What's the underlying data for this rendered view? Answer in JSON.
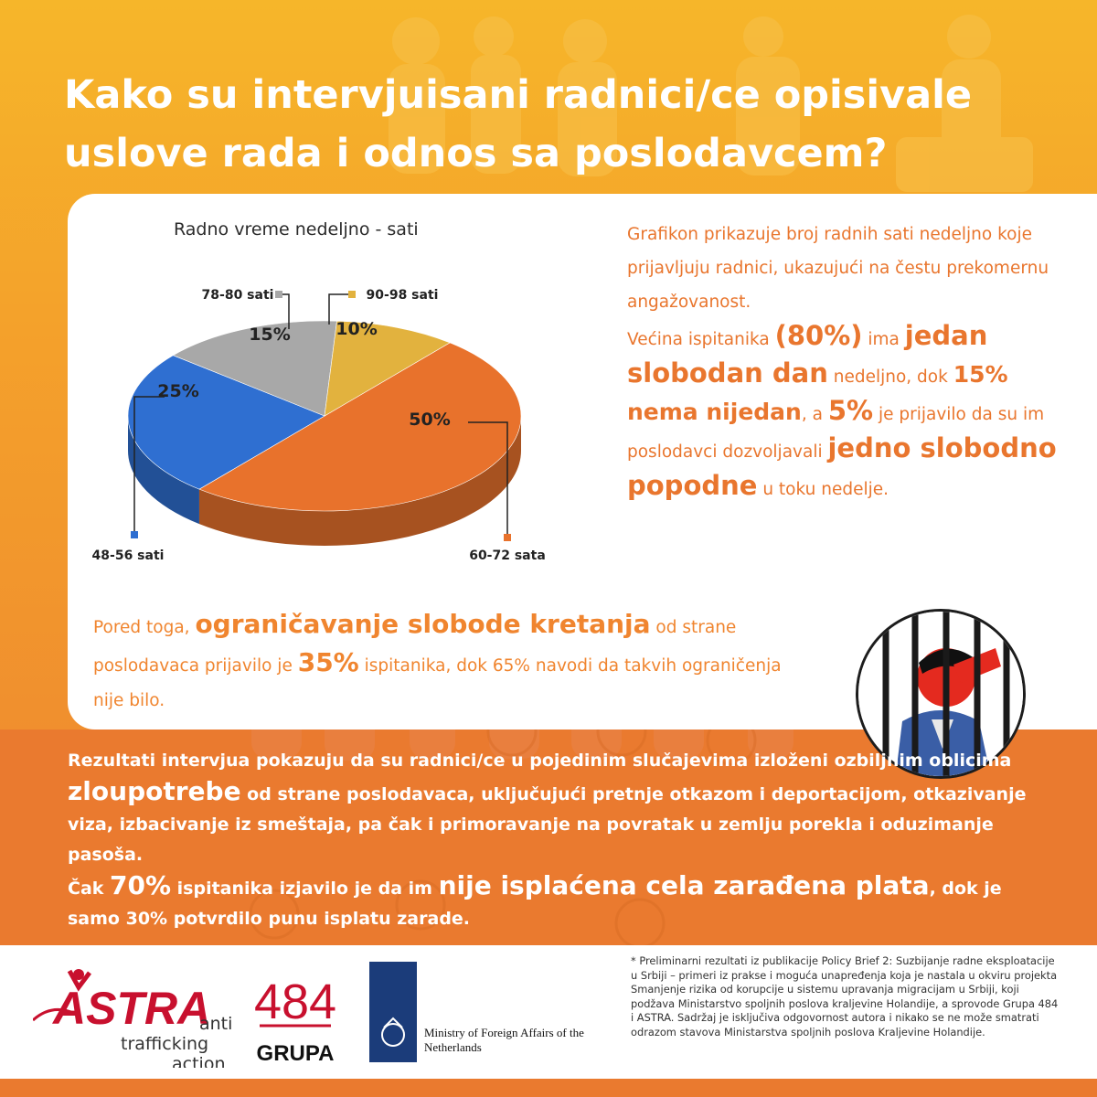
{
  "title": {
    "line1": "Kako su intervjuisani radnici/ce opisivale",
    "line2": "uslove rada i odnos sa poslodavcem?"
  },
  "chart_data": {
    "type": "pie",
    "title": "Radno vreme nedeljno - sati",
    "slices": [
      {
        "label": "60-72 sata",
        "value": 50,
        "value_label": "50%",
        "color": "#e8722c"
      },
      {
        "label": "48-56 sati",
        "value": 25,
        "value_label": "25%",
        "color": "#2f6fd1"
      },
      {
        "label": "78-80 sati",
        "value": 15,
        "value_label": "15%",
        "color": "#a8a8a8"
      },
      {
        "label": "90-98 sati",
        "value": 10,
        "value_label": "10%",
        "color": "#e2b23e"
      }
    ]
  },
  "side": {
    "p1": "Grafikon prikazuje broj radnih sati nedeljno koje prijavljuju radnici, ukazujući na čestu prekomernu angažovanost.",
    "p2_a": "Većina ispitanika ",
    "p2_b": "(80%)",
    "p2_c": " ima ",
    "p2_d": "jedan slobodan dan",
    "p2_e": " nedeljno, dok ",
    "p2_f": "15% nema nijedan",
    "p2_g": ", a ",
    "p2_h": "5%",
    "p2_i": " je prijavilo da su im poslodavci dozvoljavali ",
    "p2_j": "jedno slobodno popodne",
    "p2_k": " u toku nedelje."
  },
  "middle": {
    "a": "Pored toga, ",
    "b": "ograničavanje slobode kretanja",
    "c": " od strane poslodavaca prijavilo je ",
    "d": "35%",
    "e": " ispitanika, dok 65% navodi da takvih ograničenja nije bilo."
  },
  "band": {
    "a": "Rezultati intervjua pokazuju da su radnici/ce u pojedinim slučajevima izloženi ozbiljnim oblicima ",
    "b": "zloupotrebe",
    "c": " od strane poslodavaca, uključujući pretnje otkazom i deportacijom, otkazivanje viza, izbacivanje iz smeštaja, pa čak i primoravanje na povratak u zemlju porekla i oduzimanje pasoša.",
    "d": "Čak ",
    "e": "70%",
    "f": " ispitanika izjavilo je da im ",
    "g": "nije isplaćena cela zarađena plata",
    "h": ", dok je samo 30% potvrdilo punu isplatu zarade."
  },
  "footnote": "* Preliminarni rezultati iz publikacije Policy Brief 2: Suzbijanje radne eksploatacije u Srbiji – primeri iz prakse i moguća unapređenja koja je nastala u okviru projekta Smanjenje rizika od korupcije u sistemu upravanja migracijam u Srbiji, koji podžava Ministarstvo spoljnih poslova kraljevine Holandije, a sprovode Grupa 484 i ASTRA. Sadržaj je isključiva odgovornost autora i nikako se ne može smatrati odrazom stavova Ministarstva spoljnih poslova Kraljevine Holandije.",
  "logos": {
    "astra_name": "ASTRA",
    "astra_anti": "anti",
    "astra_trafficking": "trafficking",
    "astra_action": "action",
    "grupa_number": "484",
    "grupa_name": "GRUPA",
    "nl_line1": "Ministry of Foreign Affairs of the",
    "nl_line2": "Netherlands"
  }
}
